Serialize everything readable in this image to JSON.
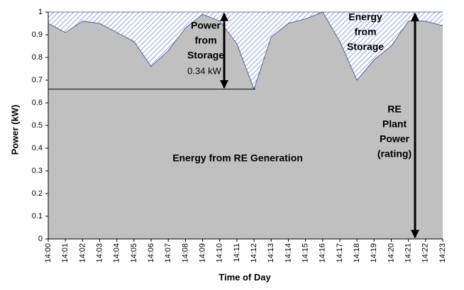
{
  "chart_data": {
    "type": "area",
    "categories": [
      "14:00",
      "14:01",
      "14:02",
      "14:03",
      "14:04",
      "14:05",
      "14:06",
      "14:07",
      "14:08",
      "14:09",
      "14:10",
      "14:11",
      "14:12",
      "14:13",
      "14:14",
      "14:15",
      "14:16",
      "14:17",
      "14:18",
      "14:19",
      "14:20",
      "14:21",
      "14:22",
      "14:23"
    ],
    "values": [
      0.95,
      0.91,
      0.96,
      0.95,
      0.91,
      0.87,
      0.76,
      0.83,
      0.93,
      0.99,
      0.96,
      0.86,
      0.66,
      0.89,
      0.95,
      0.97,
      1.0,
      0.87,
      0.7,
      0.79,
      0.85,
      0.96,
      0.96,
      0.94
    ],
    "color": "#c0c0c0",
    "hatch_color": "#8fa6e6",
    "ylim": [
      0,
      1
    ],
    "yticks": [
      0,
      0.1,
      0.2,
      0.3,
      0.4,
      0.5,
      0.6,
      0.7,
      0.8,
      0.9,
      1
    ],
    "x_label": "Time of Day",
    "y_label": "Power (kW)",
    "annotations": [
      {
        "lines": [
          "Power",
          "from",
          "Storage"
        ]
      },
      {
        "lines": [
          "0.34 kW"
        ]
      },
      {
        "lines": [
          "Energy",
          "from",
          "Storage"
        ]
      },
      {
        "lines": [
          "Energy from RE Generation"
        ]
      },
      {
        "lines": [
          "RE",
          "Plant",
          "Power",
          "(rating)"
        ]
      }
    ]
  }
}
